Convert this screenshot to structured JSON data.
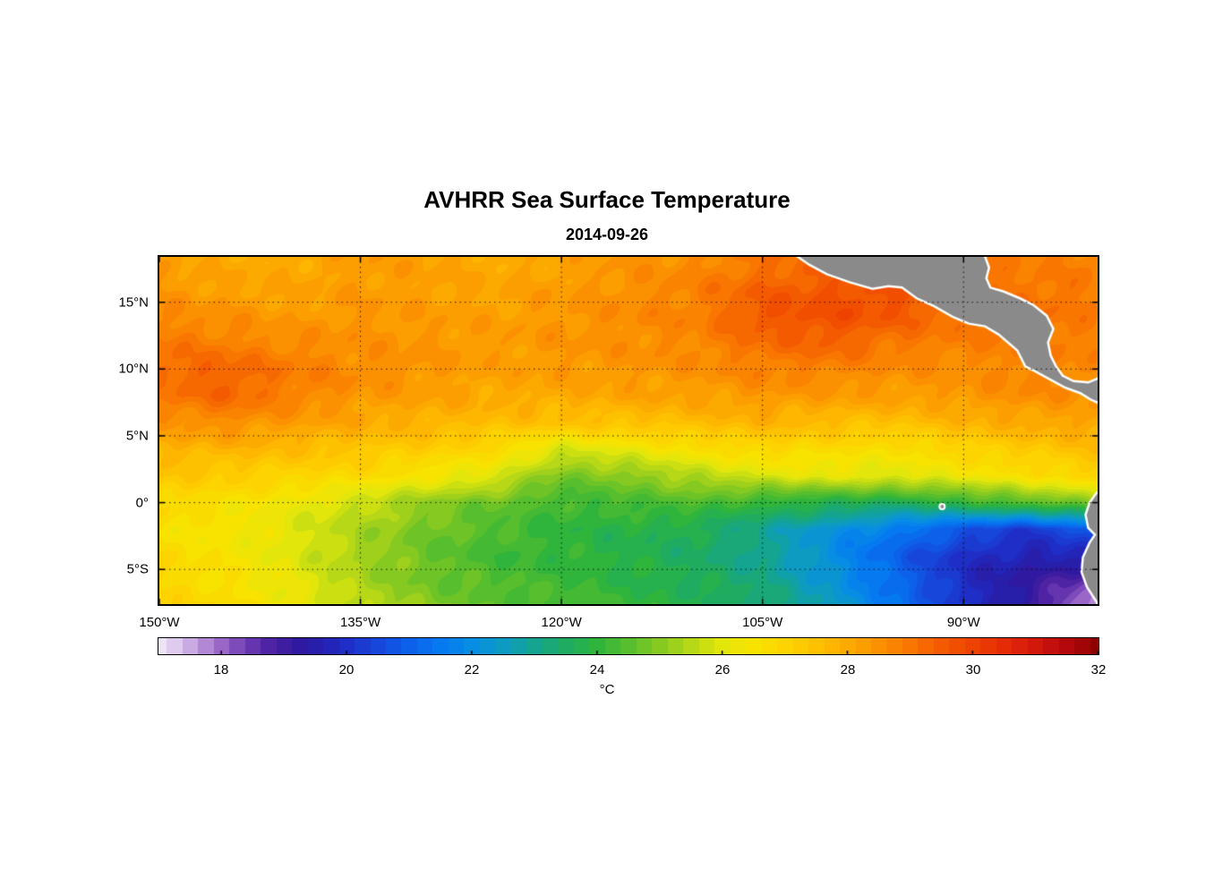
{
  "chart_data": {
    "type": "heatmap",
    "title": "AVHRR Sea Surface Temperature",
    "subtitle": "2014-09-26",
    "colorbar_label": "°C",
    "lon_range": [
      -150,
      -80
    ],
    "lat_range": [
      -7.6,
      18.4
    ],
    "x_ticks": [
      {
        "v": -150,
        "label": "150°W"
      },
      {
        "v": -135,
        "label": "135°W"
      },
      {
        "v": -120,
        "label": "120°W"
      },
      {
        "v": -105,
        "label": "105°W"
      },
      {
        "v": -90,
        "label": "90°W"
      }
    ],
    "y_ticks": [
      {
        "v": 15,
        "label": "15°N"
      },
      {
        "v": 10,
        "label": "10°N"
      },
      {
        "v": 5,
        "label": "5°N"
      },
      {
        "v": 0,
        "label": "0°"
      },
      {
        "v": -5,
        "label": "5°S"
      }
    ],
    "grid_lons": [
      -135,
      -120,
      -105,
      -90
    ],
    "grid_lats": [
      15,
      10,
      5,
      0,
      -5
    ],
    "colorbar": {
      "min": 17,
      "max": 32,
      "ticks": [
        18,
        20,
        22,
        24,
        26,
        28,
        30,
        32
      ],
      "stops": [
        [
          17.0,
          "#EDE4F5"
        ],
        [
          17.3,
          "#DCC6EC"
        ],
        [
          17.6,
          "#C09CDD"
        ],
        [
          18.0,
          "#9A66C8"
        ],
        [
          18.4,
          "#6E3BB4"
        ],
        [
          18.8,
          "#4A21A2"
        ],
        [
          19.2,
          "#31189E"
        ],
        [
          19.6,
          "#2420AE"
        ],
        [
          20.0,
          "#1E2EC6"
        ],
        [
          20.5,
          "#1646DA"
        ],
        [
          21.0,
          "#0C60E9"
        ],
        [
          21.5,
          "#0579F0"
        ],
        [
          22.0,
          "#078DE3"
        ],
        [
          22.5,
          "#0D9BC2"
        ],
        [
          23.0,
          "#14A48F"
        ],
        [
          23.5,
          "#1FAC61"
        ],
        [
          24.0,
          "#2FB43C"
        ],
        [
          24.5,
          "#57BE2D"
        ],
        [
          25.0,
          "#86C921"
        ],
        [
          25.5,
          "#B6D816"
        ],
        [
          26.0,
          "#E3E60B"
        ],
        [
          26.5,
          "#F8E300"
        ],
        [
          27.0,
          "#FDD300"
        ],
        [
          27.5,
          "#FEC100"
        ],
        [
          28.0,
          "#FDAA00"
        ],
        [
          28.5,
          "#FB9100"
        ],
        [
          29.0,
          "#F97700"
        ],
        [
          29.5,
          "#F45B00"
        ],
        [
          30.0,
          "#EE4200"
        ],
        [
          30.5,
          "#E42B06"
        ],
        [
          31.0,
          "#D2170B"
        ],
        [
          31.5,
          "#B4090C"
        ],
        [
          32.0,
          "#8E0000"
        ]
      ]
    },
    "sst_grid": {
      "lons": [
        -150,
        -145,
        -140,
        -135,
        -130,
        -125,
        -120,
        -115,
        -110,
        -105,
        -100,
        -95,
        -90,
        -85,
        -80
      ],
      "lats": [
        18,
        16,
        14,
        12,
        10,
        8,
        6,
        4,
        2,
        0,
        -2,
        -4,
        -6,
        -8
      ],
      "values": [
        [
          28.2,
          28.0,
          28.0,
          28.3,
          28.2,
          28.0,
          28.1,
          28.4,
          28.6,
          29.0,
          29.3,
          29.5,
          29.0,
          28.8,
          28.8
        ],
        [
          28.4,
          28.2,
          28.1,
          28.3,
          28.2,
          28.1,
          28.3,
          28.5,
          28.8,
          29.4,
          29.6,
          29.8,
          29.2,
          29.0,
          29.0
        ],
        [
          28.6,
          28.5,
          28.3,
          28.4,
          28.3,
          28.2,
          28.4,
          28.6,
          28.8,
          29.6,
          29.8,
          29.5,
          29.0,
          29.2,
          28.8
        ],
        [
          29.0,
          28.8,
          28.6,
          28.5,
          28.4,
          28.3,
          28.4,
          28.5,
          28.7,
          29.2,
          29.4,
          29.0,
          28.8,
          29.0,
          28.8
        ],
        [
          29.2,
          29.4,
          28.9,
          28.6,
          28.4,
          28.2,
          28.3,
          28.4,
          28.5,
          28.8,
          28.8,
          28.6,
          28.5,
          28.8,
          28.6
        ],
        [
          29.0,
          29.3,
          28.8,
          28.4,
          28.2,
          28.0,
          28.0,
          28.1,
          28.2,
          28.4,
          28.3,
          28.2,
          28.4,
          28.6,
          28.4
        ],
        [
          28.4,
          28.6,
          28.3,
          28.0,
          27.8,
          27.6,
          27.5,
          27.5,
          27.6,
          27.8,
          27.6,
          27.5,
          27.8,
          28.0,
          28.2
        ],
        [
          27.8,
          27.8,
          27.6,
          27.4,
          27.2,
          26.8,
          25.9,
          26.2,
          26.6,
          26.9,
          26.8,
          26.6,
          27.0,
          27.3,
          27.6
        ],
        [
          27.4,
          27.2,
          27.0,
          26.8,
          26.4,
          26.0,
          24.8,
          25.0,
          25.5,
          25.9,
          26.1,
          26.0,
          26.3,
          26.6,
          27.0
        ],
        [
          26.9,
          26.6,
          26.2,
          25.7,
          25.1,
          24.7,
          24.2,
          24.3,
          24.4,
          24.0,
          23.8,
          23.6,
          24.0,
          24.6,
          25.0
        ],
        [
          26.6,
          26.4,
          26.0,
          25.4,
          24.8,
          24.4,
          24.0,
          23.8,
          23.6,
          23.0,
          22.2,
          21.5,
          20.8,
          20.2,
          21.0
        ],
        [
          26.8,
          26.5,
          26.0,
          25.3,
          24.7,
          24.2,
          24.0,
          23.8,
          23.5,
          23.0,
          22.0,
          21.0,
          20.0,
          19.6,
          19.8
        ],
        [
          26.9,
          26.6,
          26.1,
          25.4,
          24.8,
          24.4,
          24.2,
          23.9,
          23.6,
          23.2,
          22.3,
          21.2,
          19.9,
          19.2,
          18.3
        ],
        [
          27.0,
          26.8,
          26.3,
          25.6,
          25.0,
          24.6,
          24.3,
          24.1,
          23.8,
          23.4,
          22.5,
          21.5,
          20.2,
          19.0,
          17.3
        ]
      ]
    },
    "land": {
      "fill": "#8A8A8A",
      "coast": "#FFFFFF",
      "polygons": {
        "central_america": [
          [
            -102.8,
            18.7
          ],
          [
            -101.5,
            17.8
          ],
          [
            -100.2,
            17.1
          ],
          [
            -98.5,
            16.5
          ],
          [
            -96.8,
            16.0
          ],
          [
            -95.6,
            16.2
          ],
          [
            -94.6,
            16.1
          ],
          [
            -93.5,
            15.3
          ],
          [
            -92.2,
            14.7
          ],
          [
            -90.8,
            13.9
          ],
          [
            -89.6,
            13.4
          ],
          [
            -88.4,
            13.2
          ],
          [
            -87.4,
            12.6
          ],
          [
            -86.7,
            12.0
          ],
          [
            -86.0,
            11.4
          ],
          [
            -85.7,
            10.8
          ],
          [
            -85.4,
            10.2
          ],
          [
            -84.6,
            9.8
          ],
          [
            -83.5,
            9.2
          ],
          [
            -82.4,
            8.6
          ],
          [
            -81.3,
            8.2
          ],
          [
            -80.5,
            7.7
          ],
          [
            -79.3,
            7.2
          ],
          [
            -79.3,
            9.6
          ],
          [
            -80.7,
            9.0
          ],
          [
            -81.8,
            9.1
          ],
          [
            -82.6,
            9.5
          ],
          [
            -83.1,
            10.2
          ],
          [
            -83.5,
            11.0
          ],
          [
            -83.7,
            12.0
          ],
          [
            -83.3,
            13.0
          ],
          [
            -83.8,
            14.0
          ],
          [
            -84.8,
            14.8
          ],
          [
            -85.8,
            15.3
          ],
          [
            -87.0,
            15.8
          ],
          [
            -88.0,
            16.1
          ],
          [
            -88.3,
            16.8
          ],
          [
            -88.1,
            17.6
          ],
          [
            -88.5,
            18.7
          ]
        ],
        "south_america": [
          [
            -79.0,
            1.2
          ],
          [
            -80.1,
            0.7
          ],
          [
            -80.6,
            0.0
          ],
          [
            -80.9,
            -0.9
          ],
          [
            -80.7,
            -1.9
          ],
          [
            -80.2,
            -2.4
          ],
          [
            -80.6,
            -3.0
          ],
          [
            -81.1,
            -4.1
          ],
          [
            -81.2,
            -5.2
          ],
          [
            -80.8,
            -6.3
          ],
          [
            -80.1,
            -7.4
          ],
          [
            -79.7,
            -8.2
          ],
          [
            -79.0,
            -8.2
          ]
        ]
      },
      "islands": [
        {
          "name": "galapagos",
          "lon": -91.6,
          "lat": -0.3,
          "r": 3
        }
      ]
    }
  }
}
